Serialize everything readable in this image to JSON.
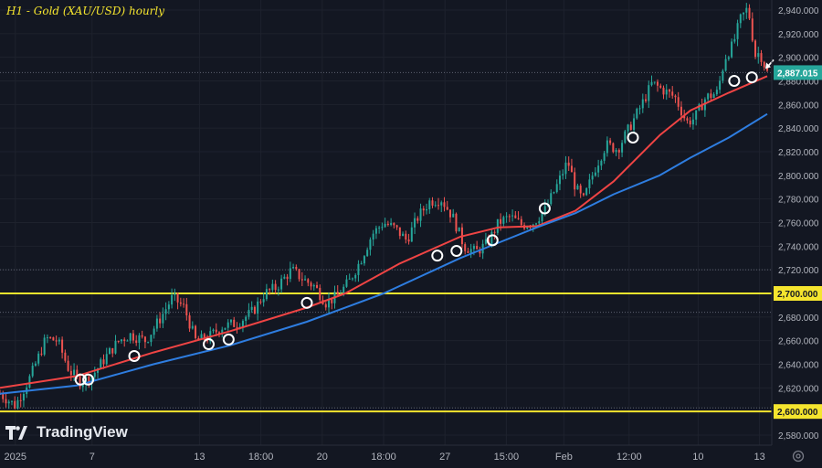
{
  "title": "H1 - Gold (XAU/USD) hourly",
  "brand": "TradingView",
  "colors": {
    "background": "#131722",
    "grid": "#1e222d",
    "up": "#26a69a",
    "down": "#ef5350",
    "ema_fast": "#ef4444",
    "ema_slow": "#2e7de0",
    "level": "#f5e52e",
    "price_tag": "#26a69a",
    "axis_text": "#b2b5be",
    "marker": "#ffffff"
  },
  "chart_data": {
    "type": "candlestick",
    "title": "H1 - Gold (XAU/USD) hourly",
    "ylim": [
      2570,
      2950
    ],
    "y_ticks": [
      2940,
      2920,
      2900,
      2880,
      2860,
      2840,
      2820,
      2800,
      2780,
      2760,
      2740,
      2720,
      2680,
      2660,
      2640,
      2620,
      2580
    ],
    "y_tick_labels": [
      "2,940.000",
      "2,920.000",
      "2,900.000",
      "2,880.000",
      "2,860.000",
      "2,840.000",
      "2,820.000",
      "2,800.000",
      "2,780.000",
      "2,760.000",
      "2,740.000",
      "2,720.000",
      "2,680.000",
      "2,660.000",
      "2,640.000",
      "2,620.000",
      "2,580.000"
    ],
    "x_labels": [
      "2025",
      "7",
      "13",
      "18:00",
      "20",
      "18:00",
      "27",
      "15:00",
      "Feb",
      "12:00",
      "10",
      "13"
    ],
    "x_label_positions": [
      0.02,
      0.12,
      0.26,
      0.34,
      0.42,
      0.5,
      0.58,
      0.66,
      0.735,
      0.82,
      0.91,
      0.99
    ],
    "current_price": 2887.015,
    "current_price_label": "2,887.015",
    "levels": [
      {
        "value": 2700,
        "label": "2,700.000"
      },
      {
        "value": 2600,
        "label": "2,600.000"
      }
    ],
    "dotted_lines": [
      2887.015,
      2720,
      2684,
      2603
    ],
    "price_path": [
      [
        0.0,
        2615
      ],
      [
        0.02,
        2605
      ],
      [
        0.04,
        2630
      ],
      [
        0.06,
        2662
      ],
      [
        0.075,
        2660
      ],
      [
        0.09,
        2635
      ],
      [
        0.105,
        2625
      ],
      [
        0.12,
        2630
      ],
      [
        0.14,
        2648
      ],
      [
        0.155,
        2660
      ],
      [
        0.17,
        2665
      ],
      [
        0.19,
        2660
      ],
      [
        0.21,
        2680
      ],
      [
        0.225,
        2697
      ],
      [
        0.24,
        2688
      ],
      [
        0.255,
        2660
      ],
      [
        0.27,
        2662
      ],
      [
        0.29,
        2672
      ],
      [
        0.31,
        2675
      ],
      [
        0.33,
        2685
      ],
      [
        0.345,
        2700
      ],
      [
        0.36,
        2705
      ],
      [
        0.38,
        2720
      ],
      [
        0.395,
        2712
      ],
      [
        0.41,
        2706
      ],
      [
        0.425,
        2692
      ],
      [
        0.44,
        2698
      ],
      [
        0.455,
        2710
      ],
      [
        0.47,
        2728
      ],
      [
        0.485,
        2750
      ],
      [
        0.5,
        2760
      ],
      [
        0.515,
        2755
      ],
      [
        0.53,
        2745
      ],
      [
        0.545,
        2765
      ],
      [
        0.56,
        2778
      ],
      [
        0.575,
        2780
      ],
      [
        0.59,
        2765
      ],
      [
        0.605,
        2740
      ],
      [
        0.62,
        2735
      ],
      [
        0.635,
        2742
      ],
      [
        0.65,
        2760
      ],
      [
        0.665,
        2765
      ],
      [
        0.68,
        2758
      ],
      [
        0.695,
        2760
      ],
      [
        0.71,
        2770
      ],
      [
        0.725,
        2790
      ],
      [
        0.74,
        2812
      ],
      [
        0.75,
        2790
      ],
      [
        0.76,
        2778
      ],
      [
        0.775,
        2805
      ],
      [
        0.79,
        2826
      ],
      [
        0.805,
        2822
      ],
      [
        0.82,
        2840
      ],
      [
        0.835,
        2858
      ],
      [
        0.85,
        2878
      ],
      [
        0.865,
        2872
      ],
      [
        0.88,
        2866
      ],
      [
        0.895,
        2845
      ],
      [
        0.905,
        2848
      ],
      [
        0.92,
        2866
      ],
      [
        0.935,
        2870
      ],
      [
        0.945,
        2900
      ],
      [
        0.955,
        2910
      ],
      [
        0.965,
        2932
      ],
      [
        0.975,
        2942
      ],
      [
        0.985,
        2900
      ],
      [
        0.99,
        2905
      ],
      [
        1.0,
        2887
      ]
    ],
    "series": [
      {
        "name": "ema_fast",
        "points": [
          [
            0.0,
            2620
          ],
          [
            0.1,
            2630
          ],
          [
            0.2,
            2650
          ],
          [
            0.3,
            2668
          ],
          [
            0.4,
            2688
          ],
          [
            0.45,
            2700
          ],
          [
            0.52,
            2725
          ],
          [
            0.6,
            2748
          ],
          [
            0.65,
            2756
          ],
          [
            0.7,
            2757
          ],
          [
            0.75,
            2770
          ],
          [
            0.8,
            2795
          ],
          [
            0.86,
            2834
          ],
          [
            0.9,
            2855
          ],
          [
            0.95,
            2870
          ],
          [
            1.0,
            2884
          ]
        ]
      },
      {
        "name": "ema_slow",
        "points": [
          [
            0.0,
            2615
          ],
          [
            0.1,
            2622
          ],
          [
            0.2,
            2640
          ],
          [
            0.3,
            2656
          ],
          [
            0.4,
            2676
          ],
          [
            0.5,
            2700
          ],
          [
            0.6,
            2730
          ],
          [
            0.65,
            2743
          ],
          [
            0.7,
            2756
          ],
          [
            0.75,
            2768
          ],
          [
            0.8,
            2784
          ],
          [
            0.86,
            2800
          ],
          [
            0.9,
            2815
          ],
          [
            0.95,
            2832
          ],
          [
            1.0,
            2852
          ]
        ]
      }
    ],
    "markers": [
      {
        "t": 0.105,
        "v": 2627
      },
      {
        "t": 0.115,
        "v": 2627
      },
      {
        "t": 0.175,
        "v": 2647
      },
      {
        "t": 0.272,
        "v": 2657
      },
      {
        "t": 0.298,
        "v": 2661
      },
      {
        "t": 0.4,
        "v": 2692
      },
      {
        "t": 0.57,
        "v": 2732
      },
      {
        "t": 0.595,
        "v": 2736
      },
      {
        "t": 0.642,
        "v": 2745
      },
      {
        "t": 0.71,
        "v": 2772
      },
      {
        "t": 0.825,
        "v": 2832
      },
      {
        "t": 0.957,
        "v": 2880
      },
      {
        "t": 0.98,
        "v": 2883
      }
    ]
  }
}
